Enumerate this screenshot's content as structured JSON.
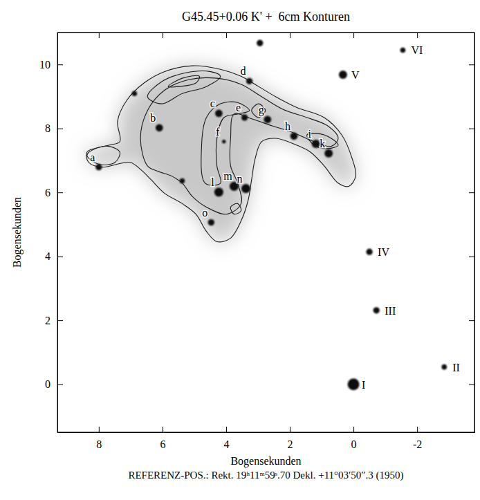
{
  "chart_data": {
    "type": "scatter",
    "title": "G45.45+0.06 K' +  6cm Konturen",
    "xlabel": "Bogensekunden",
    "ylabel": "Bogensekunden",
    "caption": "REFERENZ-POS.: Rekt. 19ʰ11ᵐ59ˢ.70 Dekl. +11°03′50″.3 (1950)",
    "xlim": [
      9.3,
      -3.8
    ],
    "ylim": [
      -1.5,
      11.0
    ],
    "xticks": [
      8,
      6,
      4,
      2,
      0,
      -2
    ],
    "yticks": [
      0,
      2,
      4,
      6,
      8,
      10
    ],
    "labels": [
      "I",
      "II",
      "III",
      "IV",
      "V",
      "VI",
      "a",
      "b",
      "c",
      "d",
      "e",
      "f",
      "g",
      "h",
      "i",
      "k",
      "l",
      "m",
      "n",
      "o",
      null,
      null,
      null
    ],
    "x": [
      0,
      -2.85,
      -0.72,
      -0.5,
      0.33,
      -1.55,
      8.0,
      6.1,
      4.23,
      3.27,
      3.42,
      4.07,
      2.7,
      1.87,
      1.18,
      0.78,
      4.23,
      3.75,
      3.38,
      4.47,
      2.94,
      6.88,
      5.38
    ],
    "values": [
      0,
      0.54,
      2.31,
      4.14,
      9.68,
      10.45,
      6.79,
      8.02,
      8.47,
      9.48,
      8.34,
      7.59,
      8.28,
      7.76,
      7.52,
      7.22,
      6.01,
      6.19,
      6.12,
      5.06,
      10.67,
      9.09,
      6.36
    ],
    "brightness": [
      10,
      2,
      3,
      3,
      5,
      2,
      3,
      4,
      4,
      3,
      3,
      1,
      4,
      4,
      5,
      5,
      6,
      6,
      6,
      3,
      3,
      2,
      2
    ],
    "contours": [
      {
        "x": [
          8.37,
          7.67,
          7.34,
          7.41,
          7.12,
          6.58,
          5.93,
          5.05,
          4.18,
          3.53,
          2.98,
          2.44,
          1.79,
          0.92,
          0.37,
          0.04,
          -0.07,
          0.15,
          0.48,
          0.92,
          1.35,
          1.79,
          2.44,
          2.88,
          3.09,
          3.2,
          3.31,
          3.53,
          3.86,
          4.29,
          4.62,
          4.95,
          5.38,
          5.93,
          6.36,
          6.69,
          7.02,
          7.89,
          8.32
        ],
        "y": [
          7.26,
          7.48,
          7.59,
          8.23,
          8.88,
          9.42,
          9.78,
          9.96,
          9.85,
          9.63,
          9.31,
          8.99,
          8.66,
          8.34,
          7.8,
          7.05,
          6.51,
          6.19,
          6.29,
          6.83,
          7.26,
          7.48,
          7.69,
          7.59,
          7.05,
          6.4,
          5.75,
          5.11,
          4.57,
          4.46,
          4.78,
          5.32,
          5.65,
          5.97,
          6.4,
          6.72,
          6.94,
          6.79,
          6.94
        ]
      },
      {
        "x": [
          6.47,
          6.69,
          6.47,
          5.93,
          5.16,
          4.29,
          3.53,
          2.88,
          2.22,
          1.46,
          0.81,
          0.48,
          0.7,
          1.24,
          1.9,
          2.55,
          3.2,
          3.75,
          3.86,
          3.86,
          3.64,
          3.53,
          3.97,
          4.62,
          5.05,
          5.38,
          5.71,
          6.14
        ],
        "y": [
          6.83,
          7.69,
          8.56,
          9.2,
          9.53,
          9.57,
          9.38,
          8.99,
          8.6,
          8.34,
          8.08,
          7.69,
          7.44,
          7.59,
          7.87,
          8.08,
          8.3,
          8.45,
          7.69,
          6.83,
          6.29,
          5.65,
          5.32,
          5.54,
          5.86,
          6.29,
          6.51,
          6.66
        ]
      },
      {
        "x": [
          4.66,
          4.77,
          4.62,
          4.18,
          3.64,
          3.27,
          3.64,
          4.07,
          4.29,
          4.29,
          4.18
        ],
        "y": [
          6.29,
          7.48,
          8.34,
          8.77,
          8.81,
          8.56,
          8.45,
          8.34,
          7.69,
          6.83,
          6.29
        ]
      },
      {
        "x": [
          6.47,
          6.03,
          5.27,
          4.51,
          4.18,
          4.62,
          5.38,
          6.03
        ],
        "y": [
          8.99,
          9.46,
          9.74,
          9.78,
          9.63,
          9.31,
          9.09,
          8.77
        ]
      },
      {
        "x": [
          5.82,
          5.38,
          4.84,
          4.95,
          5.49
        ],
        "y": [
          9.31,
          9.57,
          9.63,
          9.42,
          9.31
        ]
      },
      {
        "x": [
          8.37,
          8.1,
          7.67,
          7.34,
          7.49,
          8.0
        ],
        "y": [
          7.16,
          7.37,
          7.44,
          7.26,
          6.94,
          6.88
        ]
      },
      {
        "x": [
          3.2,
          2.98,
          2.77,
          2.98
        ],
        "y": [
          8.56,
          8.77,
          8.56,
          8.34
        ]
      },
      {
        "x": [
          1.46,
          0.92,
          0.48,
          0.81,
          1.24
        ],
        "y": [
          7.8,
          7.8,
          7.48,
          7.37,
          7.48
        ]
      },
      {
        "x": [
          3.86,
          3.64,
          3.53,
          3.75
        ],
        "y": [
          5.54,
          5.65,
          5.43,
          5.32
        ]
      }
    ]
  }
}
